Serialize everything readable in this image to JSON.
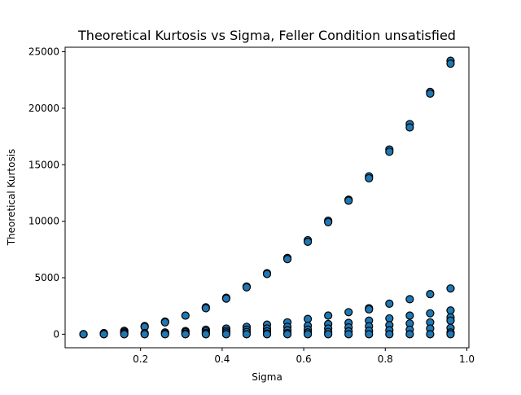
{
  "chart_data": {
    "type": "scatter",
    "title": "Theoretical Kurtosis vs Sigma, Feller Condition unsatisfied",
    "xlabel": "Sigma",
    "ylabel": "Theoretical Kurtosis",
    "xlim": [
      0.015,
      1.005
    ],
    "ylim": [
      -1200,
      25400
    ],
    "xticks": [
      0.2,
      0.4,
      0.6,
      0.8,
      1.0
    ],
    "xtick_labels": [
      "0.2",
      "0.4",
      "0.6",
      "0.8",
      "1.0"
    ],
    "yticks": [
      0,
      5000,
      10000,
      15000,
      20000,
      25000
    ],
    "ytick_labels": [
      "0",
      "5000",
      "10000",
      "15000",
      "20000",
      "25000"
    ],
    "grid": false,
    "marker_color": "#1f77b4",
    "marker_edge_color": "#000000",
    "series": [
      {
        "points": [
          [
            0.06,
            0
          ],
          [
            0.06,
            0
          ],
          [
            0.06,
            0
          ],
          [
            0.11,
            100
          ],
          [
            0.11,
            50
          ],
          [
            0.11,
            0
          ],
          [
            0.16,
            300
          ],
          [
            0.16,
            200
          ],
          [
            0.16,
            100
          ],
          [
            0.16,
            0
          ],
          [
            0.21,
            720
          ],
          [
            0.21,
            650
          ],
          [
            0.21,
            100
          ],
          [
            0.21,
            0
          ],
          [
            0.26,
            1120
          ],
          [
            0.26,
            1050
          ],
          [
            0.26,
            150
          ],
          [
            0.26,
            50
          ],
          [
            0.26,
            0
          ],
          [
            0.31,
            1650
          ],
          [
            0.31,
            280
          ],
          [
            0.31,
            180
          ],
          [
            0.31,
            50
          ],
          [
            0.31,
            0
          ],
          [
            0.36,
            2380
          ],
          [
            0.36,
            2300
          ],
          [
            0.36,
            400
          ],
          [
            0.36,
            250
          ],
          [
            0.36,
            100
          ],
          [
            0.36,
            0
          ],
          [
            0.41,
            3230
          ],
          [
            0.41,
            3150
          ],
          [
            0.41,
            500
          ],
          [
            0.41,
            300
          ],
          [
            0.41,
            150
          ],
          [
            0.41,
            0
          ],
          [
            0.46,
            4220
          ],
          [
            0.46,
            4150
          ],
          [
            0.46,
            650
          ],
          [
            0.46,
            400
          ],
          [
            0.46,
            200
          ],
          [
            0.46,
            0
          ],
          [
            0.51,
            5400
          ],
          [
            0.51,
            5330
          ],
          [
            0.51,
            850
          ],
          [
            0.51,
            500
          ],
          [
            0.51,
            250
          ],
          [
            0.51,
            50
          ],
          [
            0.51,
            0
          ],
          [
            0.56,
            6750
          ],
          [
            0.56,
            6650
          ],
          [
            0.56,
            1050
          ],
          [
            0.56,
            650
          ],
          [
            0.56,
            350
          ],
          [
            0.56,
            100
          ],
          [
            0.56,
            0
          ],
          [
            0.61,
            8320
          ],
          [
            0.61,
            8180
          ],
          [
            0.61,
            1350
          ],
          [
            0.61,
            750
          ],
          [
            0.61,
            400
          ],
          [
            0.61,
            150
          ],
          [
            0.61,
            0
          ],
          [
            0.66,
            10050
          ],
          [
            0.66,
            9920
          ],
          [
            0.66,
            1650
          ],
          [
            0.66,
            900
          ],
          [
            0.66,
            500
          ],
          [
            0.66,
            200
          ],
          [
            0.66,
            0
          ],
          [
            0.71,
            11900
          ],
          [
            0.71,
            11820
          ],
          [
            0.71,
            1950
          ],
          [
            0.71,
            1000
          ],
          [
            0.71,
            600
          ],
          [
            0.71,
            250
          ],
          [
            0.71,
            0
          ],
          [
            0.76,
            13980
          ],
          [
            0.76,
            13800
          ],
          [
            0.76,
            2300
          ],
          [
            0.76,
            2200
          ],
          [
            0.76,
            1200
          ],
          [
            0.76,
            700
          ],
          [
            0.76,
            300
          ],
          [
            0.76,
            0
          ],
          [
            0.81,
            16350
          ],
          [
            0.81,
            16150
          ],
          [
            0.81,
            2700
          ],
          [
            0.81,
            1400
          ],
          [
            0.81,
            800
          ],
          [
            0.81,
            350
          ],
          [
            0.81,
            0
          ],
          [
            0.86,
            18600
          ],
          [
            0.86,
            18300
          ],
          [
            0.86,
            3100
          ],
          [
            0.86,
            1650
          ],
          [
            0.86,
            950
          ],
          [
            0.86,
            400
          ],
          [
            0.86,
            0
          ],
          [
            0.91,
            21450
          ],
          [
            0.91,
            21300
          ],
          [
            0.91,
            3550
          ],
          [
            0.91,
            1850
          ],
          [
            0.91,
            1050
          ],
          [
            0.91,
            500
          ],
          [
            0.91,
            0
          ],
          [
            0.96,
            24200
          ],
          [
            0.96,
            23950
          ],
          [
            0.96,
            4050
          ],
          [
            0.96,
            2100
          ],
          [
            0.96,
            1500
          ],
          [
            0.96,
            1200
          ],
          [
            0.96,
            550
          ],
          [
            0.96,
            150
          ],
          [
            0.96,
            0
          ]
        ]
      }
    ]
  }
}
